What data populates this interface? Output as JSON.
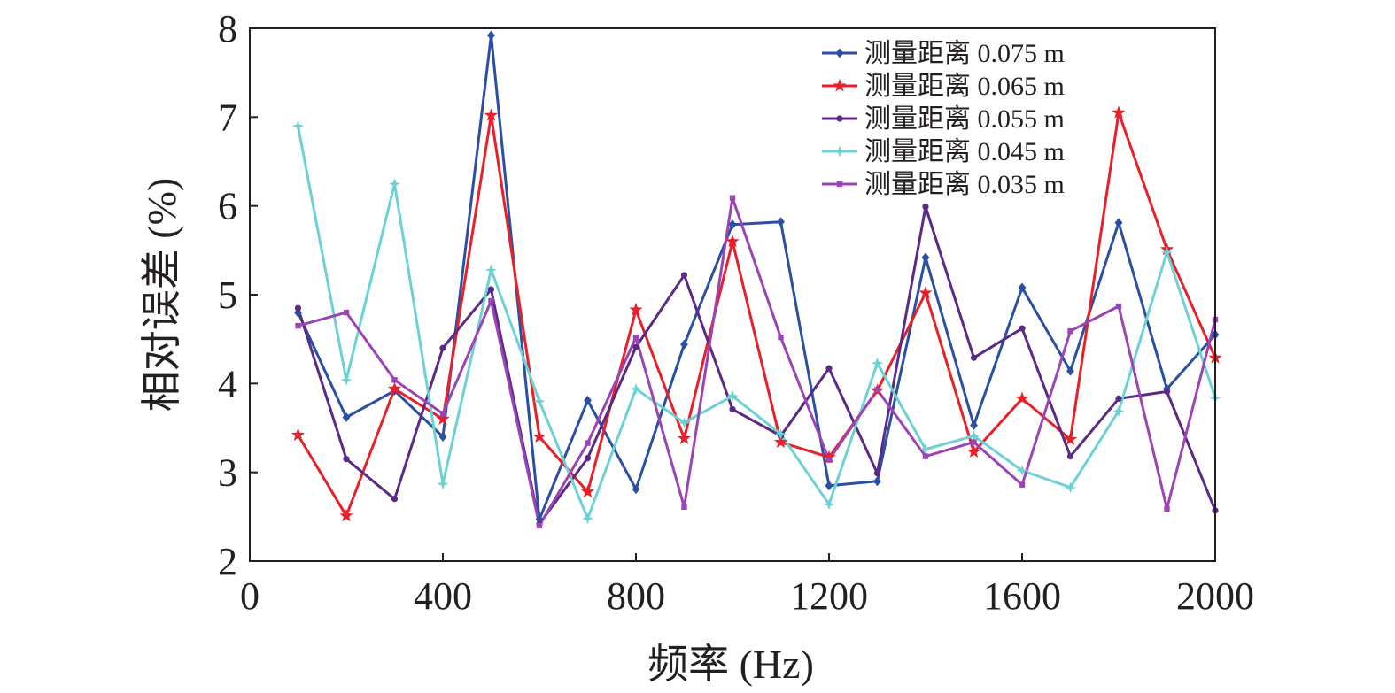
{
  "chart_data": {
    "type": "line",
    "title": "",
    "xlabel": "频率 (Hz)",
    "ylabel": "相对误差 (%)",
    "xlim": [
      0,
      2000
    ],
    "ylim": [
      2,
      8
    ],
    "xticks": [
      "0",
      "400",
      "800",
      "1200",
      "1600",
      "2000"
    ],
    "yticks": [
      "2",
      "3",
      "4",
      "5",
      "6",
      "7",
      "8"
    ],
    "grid": false,
    "legend_position": "top-right",
    "x": [
      100,
      200,
      300,
      400,
      500,
      600,
      700,
      800,
      900,
      1000,
      1100,
      1200,
      1300,
      1400,
      1500,
      1600,
      1700,
      1800,
      1900,
      2000
    ],
    "series": [
      {
        "name": "测量距离 0.075 m",
        "color": "#2b4fa3",
        "marker": "diamond",
        "values": [
          4.8,
          3.62,
          3.92,
          3.4,
          7.92,
          2.47,
          3.81,
          2.81,
          4.44,
          5.79,
          5.82,
          2.85,
          2.9,
          5.42,
          3.53,
          5.08,
          4.14,
          5.81,
          3.94,
          4.55
        ]
      },
      {
        "name": "测量距离 0.065 m",
        "color": "#e8202a",
        "marker": "star",
        "values": [
          3.42,
          2.51,
          3.94,
          3.6,
          7.02,
          3.4,
          2.78,
          4.83,
          3.38,
          5.6,
          3.34,
          3.17,
          3.92,
          5.02,
          3.23,
          3.83,
          3.37,
          7.05,
          5.51,
          4.29
        ]
      },
      {
        "name": "测量距离 0.055 m",
        "color": "#5b2a86",
        "marker": "circle",
        "values": [
          4.85,
          3.15,
          2.7,
          4.4,
          5.06,
          2.42,
          3.16,
          4.41,
          5.22,
          3.71,
          3.41,
          4.17,
          2.99,
          5.99,
          4.29,
          4.62,
          3.18,
          3.83,
          3.91,
          2.57
        ]
      },
      {
        "name": "测量距离 0.045 m",
        "color": "#6ed1d4",
        "marker": "star4",
        "values": [
          6.9,
          4.04,
          6.25,
          2.87,
          5.28,
          3.8,
          2.48,
          3.94,
          3.56,
          3.86,
          3.43,
          2.64,
          4.23,
          3.26,
          3.41,
          3.02,
          2.83,
          3.69,
          5.48,
          3.84
        ]
      },
      {
        "name": "测量距离 0.035 m",
        "color": "#9b44b5",
        "marker": "square",
        "values": [
          4.65,
          4.8,
          4.04,
          3.66,
          4.93,
          2.4,
          3.33,
          4.52,
          2.61,
          6.09,
          4.52,
          3.14,
          3.93,
          3.18,
          3.34,
          2.86,
          4.59,
          4.87,
          2.59,
          4.72
        ]
      }
    ]
  }
}
